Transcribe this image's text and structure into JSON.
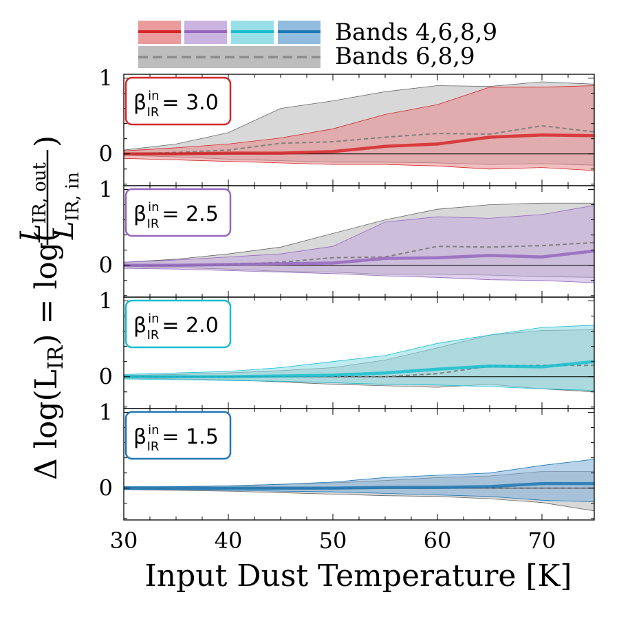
{
  "chart_data": {
    "type": "line",
    "title": "",
    "xlabel": "Input Dust Temperature [K]",
    "ylabel_main": "Δ log(L",
    "ylabel_sub": "IR",
    "ylabel_eq": ") = log(",
    "ylabel_frac_num": "L",
    "ylabel_frac_num_sub": "IR, out",
    "ylabel_frac_den": "L",
    "ylabel_frac_den_sub": "IR, in",
    "ylabel_close": ")",
    "xlim": [
      30,
      75
    ],
    "xticks": [
      "30",
      "40",
      "50",
      "60",
      "70"
    ],
    "ylim": [
      -0.42,
      1.05
    ],
    "yticks": [
      "0",
      "1"
    ],
    "legend": {
      "entry1": "Bands 4,6,8,9",
      "entry2": "Bands 6,8,9",
      "placement": "top"
    },
    "x": [
      30,
      35,
      40,
      45,
      50,
      55,
      60,
      65,
      70,
      75
    ],
    "panels": [
      {
        "beta_symbol": "β",
        "beta_sup": "in",
        "beta_sub": "IR",
        "beta_value": "= 3.0",
        "color": "#d62728",
        "fill": "#e8898a",
        "series": [
          {
            "name": "Bands 4,6,8,9 median",
            "values": [
              0.0,
              0.0,
              0.01,
              0.01,
              0.03,
              0.1,
              0.13,
              0.22,
              0.25,
              0.24
            ]
          },
          {
            "name": "Bands 4,6,8,9 upper",
            "values": [
              0.04,
              0.08,
              0.13,
              0.21,
              0.33,
              0.52,
              0.65,
              0.88,
              0.88,
              0.9
            ]
          },
          {
            "name": "Bands 4,6,8,9 lower",
            "values": [
              -0.06,
              -0.08,
              -0.1,
              -0.12,
              -0.14,
              -0.14,
              -0.16,
              -0.2,
              -0.18,
              -0.22
            ]
          },
          {
            "name": "Bands 6,8,9 median",
            "values": [
              0.0,
              0.02,
              0.05,
              0.14,
              0.16,
              0.22,
              0.27,
              0.26,
              0.37,
              0.29
            ]
          },
          {
            "name": "Bands 6,8,9 upper",
            "values": [
              0.05,
              0.13,
              0.28,
              0.6,
              0.7,
              0.82,
              0.9,
              0.89,
              0.95,
              0.92
            ]
          },
          {
            "name": "Bands 6,8,9 lower",
            "values": [
              -0.02,
              -0.04,
              -0.07,
              -0.09,
              -0.11,
              -0.11,
              -0.12,
              -0.14,
              -0.13,
              -0.15
            ]
          }
        ]
      },
      {
        "beta_symbol": "β",
        "beta_sup": "in",
        "beta_sub": "IR",
        "beta_value": "= 2.5",
        "color": "#9467bd",
        "fill": "#c3a7dc",
        "series": [
          {
            "name": "Bands 4,6,8,9 median",
            "values": [
              0.0,
              0.0,
              0.01,
              0.02,
              0.03,
              0.09,
              0.1,
              0.13,
              0.11,
              0.19
            ]
          },
          {
            "name": "Bands 4,6,8,9 upper",
            "values": [
              0.04,
              0.07,
              0.11,
              0.15,
              0.25,
              0.57,
              0.64,
              0.62,
              0.67,
              0.79
            ]
          },
          {
            "name": "Bands 4,6,8,9 lower",
            "values": [
              -0.04,
              -0.05,
              -0.07,
              -0.09,
              -0.11,
              -0.14,
              -0.16,
              -0.19,
              -0.2,
              -0.23
            ]
          },
          {
            "name": "Bands 6,8,9 median",
            "values": [
              0.0,
              0.0,
              0.01,
              0.04,
              0.1,
              0.11,
              0.25,
              0.24,
              0.26,
              0.3
            ]
          },
          {
            "name": "Bands 6,8,9 upper",
            "values": [
              0.04,
              0.08,
              0.15,
              0.24,
              0.42,
              0.6,
              0.74,
              0.8,
              0.82,
              0.82
            ]
          },
          {
            "name": "Bands 6,8,9 lower",
            "values": [
              -0.02,
              -0.03,
              -0.05,
              -0.08,
              -0.09,
              -0.12,
              -0.12,
              -0.13,
              -0.15,
              -0.16
            ]
          }
        ]
      },
      {
        "beta_symbol": "β",
        "beta_sup": "in",
        "beta_sub": "IR",
        "beta_value": "= 2.0",
        "color": "#17becf",
        "fill": "#86dbe3",
        "series": [
          {
            "name": "Bands 4,6,8,9 median",
            "values": [
              0.0,
              0.0,
              0.0,
              0.01,
              0.02,
              0.05,
              0.1,
              0.14,
              0.13,
              0.2
            ]
          },
          {
            "name": "Bands 4,6,8,9 upper",
            "values": [
              0.03,
              0.05,
              0.07,
              0.12,
              0.2,
              0.28,
              0.44,
              0.55,
              0.65,
              0.68
            ]
          },
          {
            "name": "Bands 4,6,8,9 lower",
            "values": [
              -0.03,
              -0.04,
              -0.05,
              -0.06,
              -0.08,
              -0.1,
              -0.11,
              -0.13,
              -0.16,
              -0.18
            ]
          },
          {
            "name": "Bands 6,8,9 median",
            "values": [
              0.0,
              0.0,
              0.0,
              0.0,
              0.0,
              0.0,
              0.04,
              0.14,
              0.15,
              0.15
            ]
          },
          {
            "name": "Bands 6,8,9 upper",
            "values": [
              0.02,
              0.03,
              0.05,
              0.08,
              0.12,
              0.22,
              0.38,
              0.55,
              0.61,
              0.62
            ]
          },
          {
            "name": "Bands 6,8,9 lower",
            "values": [
              -0.02,
              -0.03,
              -0.04,
              -0.07,
              -0.1,
              -0.12,
              -0.14,
              -0.1,
              -0.16,
              -0.2
            ]
          }
        ]
      },
      {
        "beta_symbol": "β",
        "beta_sup": "in",
        "beta_sub": "IR",
        "beta_value": "= 1.5",
        "color": "#1f77b4",
        "fill": "#7fb0d8",
        "series": [
          {
            "name": "Bands 4,6,8,9 median",
            "values": [
              0.0,
              0.0,
              0.0,
              0.0,
              0.0,
              0.01,
              0.01,
              0.02,
              0.06,
              0.06
            ]
          },
          {
            "name": "Bands 4,6,8,9 upper",
            "values": [
              0.02,
              0.02,
              0.03,
              0.05,
              0.08,
              0.14,
              0.17,
              0.2,
              0.3,
              0.38
            ]
          },
          {
            "name": "Bands 4,6,8,9 lower",
            "values": [
              -0.02,
              -0.02,
              -0.03,
              -0.04,
              -0.05,
              -0.07,
              -0.09,
              -0.11,
              -0.16,
              -0.18
            ]
          },
          {
            "name": "Bands 6,8,9 median",
            "values": [
              0.0,
              0.0,
              0.0,
              0.0,
              0.0,
              0.0,
              0.0,
              0.0,
              0.0,
              0.0
            ]
          },
          {
            "name": "Bands 6,8,9 upper",
            "values": [
              0.01,
              0.02,
              0.03,
              0.05,
              0.07,
              0.1,
              0.14,
              0.16,
              0.22,
              0.22
            ]
          },
          {
            "name": "Bands 6,8,9 lower",
            "values": [
              -0.02,
              -0.03,
              -0.04,
              -0.06,
              -0.08,
              -0.1,
              -0.11,
              -0.14,
              -0.19,
              -0.3
            ]
          }
        ]
      }
    ]
  }
}
